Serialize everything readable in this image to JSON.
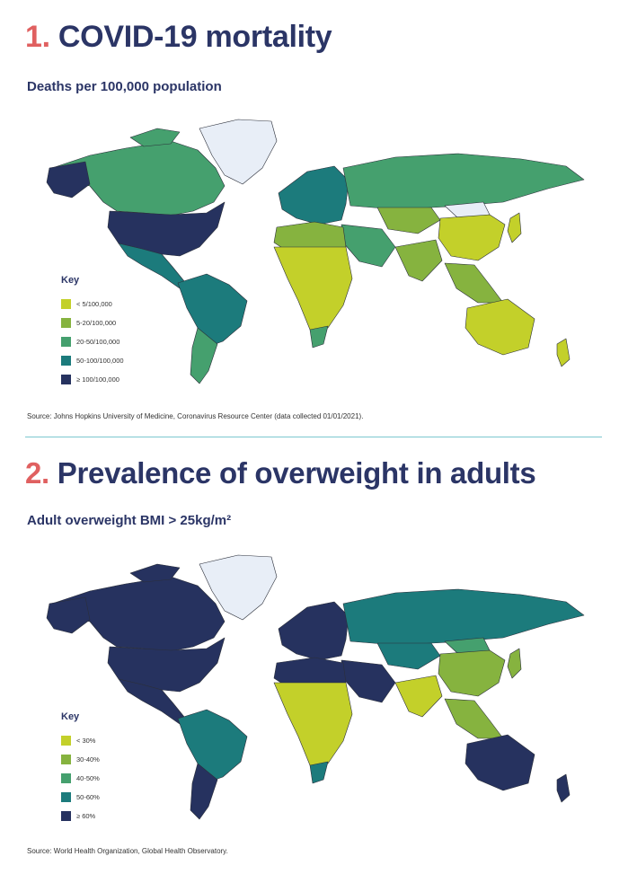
{
  "section1": {
    "number": "1.",
    "title": "COVID-19 mortality",
    "subtitle": "Deaths per 100,000 population",
    "key_title": "Key",
    "legend": [
      {
        "label": "< 5/100,000",
        "color": "#c3d02a"
      },
      {
        "label": "5-20/100,000",
        "color": "#86b33f"
      },
      {
        "label": "20-50/100,000",
        "color": "#45a06e"
      },
      {
        "label": "50-100/100,000",
        "color": "#1c7b7c"
      },
      {
        "label": "≥ 100/100,000",
        "color": "#26325f"
      }
    ],
    "source": "Source: Johns Hopkins University of Medicine, Coronavirus Resource Center (data collected 01/01/2021).",
    "regions": {
      "north_america": "#45a06e",
      "usa": "#26325f",
      "greenland": "#e8eef7",
      "mexico_central": "#1c7b7c",
      "south_america": "#1c7b7c",
      "southern_cone": "#45a06e",
      "europe": "#1c7b7c",
      "russia_asia": "#45a06e",
      "mongolia": "#e8eef7",
      "china": "#c3d02a",
      "central_asia": "#86b33f",
      "middle_east": "#45a06e",
      "north_africa": "#86b33f",
      "sub_saharan_africa": "#c3d02a",
      "southern_africa": "#45a06e",
      "south_asia": "#86b33f",
      "southeast_asia": "#86b33f",
      "japan": "#c3d02a",
      "australia": "#c3d02a",
      "new_zealand": "#c3d02a"
    }
  },
  "section2": {
    "number": "2.",
    "title": "Prevalence of overweight in adults",
    "subtitle": "Adult overweight BMI > 25kg/m²",
    "key_title": "Key",
    "legend": [
      {
        "label": "< 30%",
        "color": "#c3d02a"
      },
      {
        "label": "30-40%",
        "color": "#86b33f"
      },
      {
        "label": "40-50%",
        "color": "#45a06e"
      },
      {
        "label": "50-60%",
        "color": "#1c7b7c"
      },
      {
        "label": "≥ 60%",
        "color": "#26325f"
      }
    ],
    "source": "Source: World Health Organization, Global Health Observatory.",
    "regions": {
      "north_america": "#26325f",
      "usa": "#26325f",
      "greenland": "#e8eef7",
      "mexico_central": "#26325f",
      "south_america": "#1c7b7c",
      "southern_cone": "#26325f",
      "europe": "#26325f",
      "russia_asia": "#1c7b7c",
      "mongolia": "#45a06e",
      "china": "#86b33f",
      "central_asia": "#1c7b7c",
      "middle_east": "#26325f",
      "north_africa": "#26325f",
      "sub_saharan_africa": "#c3d02a",
      "southern_africa": "#1c7b7c",
      "south_asia": "#c3d02a",
      "southeast_asia": "#86b33f",
      "japan": "#86b33f",
      "australia": "#26325f",
      "new_zealand": "#26325f"
    }
  }
}
